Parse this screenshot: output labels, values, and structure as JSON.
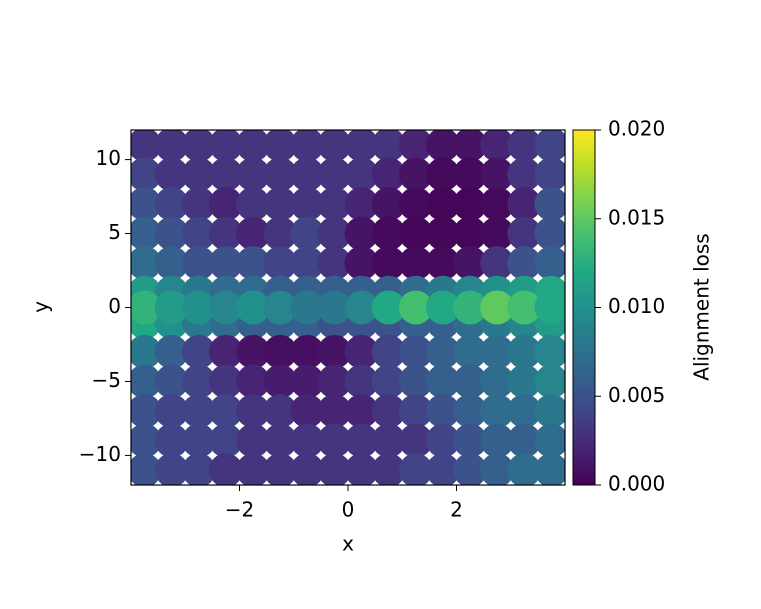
{
  "chart_data": {
    "type": "scatter",
    "xlabel": "x",
    "ylabel": "y",
    "colorbar_label": "Alignment loss",
    "colormap": "viridis",
    "xlim": [
      -4,
      4
    ],
    "ylim": [
      -12,
      12
    ],
    "xticks": [
      {
        "value": -2,
        "label": "−2"
      },
      0,
      2
    ],
    "yticks": [
      {
        "value": -10,
        "label": "−10"
      },
      {
        "value": -5,
        "label": "−5"
      },
      0,
      5,
      10
    ],
    "clim": [
      0,
      0.02
    ],
    "cticks": [
      {
        "value": 0,
        "label": "0.000"
      },
      {
        "value": 0.005,
        "label": "0.005"
      },
      {
        "value": 0.01,
        "label": "0.010"
      },
      {
        "value": 0.015,
        "label": "0.015"
      },
      {
        "value": 0.02,
        "label": "0.020"
      }
    ],
    "x": [
      -3.75,
      -3.25,
      -2.75,
      -2.25,
      -1.75,
      -1.25,
      -0.75,
      -0.25,
      0.25,
      0.75,
      1.25,
      1.75,
      2.25,
      2.75,
      3.25,
      3.75,
      -3.75,
      -3.25,
      -2.75,
      -2.25,
      -1.75,
      -1.25,
      -0.75,
      -0.25,
      0.25,
      0.75,
      1.25,
      1.75,
      2.25,
      2.75,
      3.25,
      3.75,
      -3.75,
      -3.25,
      -2.75,
      -2.25,
      -1.75,
      -1.25,
      -0.75,
      -0.25,
      0.25,
      0.75,
      1.25,
      1.75,
      2.25,
      2.75,
      3.25,
      3.75,
      -3.75,
      -3.25,
      -2.75,
      -2.25,
      -1.75,
      -1.25,
      -0.75,
      -0.25,
      0.25,
      0.75,
      1.25,
      1.75,
      2.25,
      2.75,
      3.25,
      3.75,
      -3.75,
      -3.25,
      -2.75,
      -2.25,
      -1.75,
      -1.25,
      -0.75,
      -0.25,
      0.25,
      0.75,
      1.25,
      1.75,
      2.25,
      2.75,
      3.25,
      3.75,
      -3.75,
      -3.25,
      -2.75,
      -2.25,
      -1.75,
      -1.25,
      -0.75,
      -0.25,
      0.25,
      0.75,
      1.25,
      1.75,
      2.25,
      2.75,
      3.25,
      3.75,
      -3.75,
      -3.25,
      -2.75,
      -2.25,
      -1.75,
      -1.25,
      -0.75,
      -0.25,
      0.25,
      0.75,
      1.25,
      1.75,
      2.25,
      2.75,
      3.25,
      3.75,
      -3.75,
      -3.25,
      -2.75,
      -2.25,
      -1.75,
      -1.25,
      -0.75,
      -0.25,
      0.25,
      0.75,
      1.25,
      1.75,
      2.25,
      2.75,
      3.25,
      3.75,
      -3.75,
      -3.25,
      -2.75,
      -2.25,
      -1.75,
      -1.25,
      -0.75,
      -0.25,
      0.25,
      0.75,
      1.25,
      1.75,
      2.25,
      2.75,
      3.25,
      3.75,
      -3.75,
      -3.25,
      -2.75,
      -2.25,
      -1.75,
      -1.25,
      -0.75,
      -0.25,
      0.25,
      0.75,
      1.25,
      1.75,
      2.25,
      2.75,
      3.25,
      3.75,
      -3.75,
      -3.25,
      -2.75,
      -2.25,
      -1.75,
      -1.25,
      -0.75,
      -0.25,
      0.25,
      0.75,
      1.25,
      1.75,
      2.25,
      2.75,
      3.25,
      3.75,
      -3.75,
      -3.25,
      -2.75,
      -2.25,
      -1.75,
      -1.25,
      -0.75,
      -0.25,
      0.25,
      0.75,
      1.25,
      1.75,
      2.25,
      2.75,
      3.25,
      3.75,
      -3.75,
      -3.25,
      -2.75,
      -2.25,
      -1.75,
      -1.25,
      -0.75,
      -0.25,
      0.25,
      0.75,
      1.25,
      1.75,
      2.25,
      2.75,
      3.25,
      3.75
    ],
    "y": [
      11,
      11,
      11,
      11,
      11,
      11,
      11,
      11,
      11,
      11,
      11,
      11,
      11,
      11,
      11,
      11,
      9,
      9,
      9,
      9,
      9,
      9,
      9,
      9,
      9,
      9,
      9,
      9,
      9,
      9,
      9,
      9,
      7,
      7,
      7,
      7,
      7,
      7,
      7,
      7,
      7,
      7,
      7,
      7,
      7,
      7,
      7,
      7,
      5,
      5,
      5,
      5,
      5,
      5,
      5,
      5,
      5,
      5,
      5,
      5,
      5,
      5,
      5,
      5,
      3,
      3,
      3,
      3,
      3,
      3,
      3,
      3,
      3,
      3,
      3,
      3,
      3,
      3,
      3,
      3,
      1,
      1,
      1,
      1,
      1,
      1,
      1,
      1,
      1,
      1,
      1,
      1,
      1,
      1,
      1,
      1,
      -1,
      -1,
      -1,
      -1,
      -1,
      -1,
      -1,
      -1,
      -1,
      -1,
      -1,
      -1,
      -1,
      -1,
      -1,
      -1,
      -3,
      -3,
      -3,
      -3,
      -3,
      -3,
      -3,
      -3,
      -3,
      -3,
      -3,
      -3,
      -3,
      -3,
      -3,
      -3,
      -5,
      -5,
      -5,
      -5,
      -5,
      -5,
      -5,
      -5,
      -5,
      -5,
      -5,
      -5,
      -5,
      -5,
      -5,
      -5,
      -7,
      -7,
      -7,
      -7,
      -7,
      -7,
      -7,
      -7,
      -7,
      -7,
      -7,
      -7,
      -7,
      -7,
      -7,
      -7,
      -9,
      -9,
      -9,
      -9,
      -9,
      -9,
      -9,
      -9,
      -9,
      -9,
      -9,
      -9,
      -9,
      -9,
      -9,
      -9,
      -11,
      -11,
      -11,
      -11,
      -11,
      -11,
      -11,
      -11,
      -11,
      -11,
      -11,
      -11,
      -11,
      -11,
      -11,
      -11,
      0,
      0,
      0,
      0,
      0,
      0,
      0,
      0,
      0,
      0,
      0,
      0,
      0,
      0,
      0,
      0
    ],
    "values": [
      0.003,
      0.003,
      0.003,
      0.003,
      0.003,
      0.003,
      0.003,
      0.003,
      0.003,
      0.003,
      0.002,
      0.001,
      0.001,
      0.002,
      0.003,
      0.004,
      0.004,
      0.003,
      0.003,
      0.003,
      0.003,
      0.003,
      0.003,
      0.003,
      0.003,
      0.002,
      0.001,
      0.0005,
      0.0005,
      0.001,
      0.003,
      0.004,
      0.005,
      0.004,
      0.003,
      0.002,
      0.003,
      0.003,
      0.003,
      0.003,
      0.002,
      0.001,
      0.0005,
      0.0003,
      0.0003,
      0.0005,
      0.002,
      0.005,
      0.006,
      0.005,
      0.004,
      0.003,
      0.002,
      0.003,
      0.004,
      0.003,
      0.001,
      0.0005,
      0.0003,
      0.0003,
      0.0003,
      0.0005,
      0.003,
      0.005,
      0.007,
      0.006,
      0.005,
      0.005,
      0.005,
      0.004,
      0.004,
      0.003,
      0.001,
      0.0005,
      0.0005,
      0.0005,
      0.001,
      0.003,
      0.005,
      0.006,
      0.011,
      0.009,
      0.008,
      0.007,
      0.007,
      0.006,
      0.006,
      0.006,
      0.006,
      0.006,
      0.007,
      0.008,
      0.009,
      0.01,
      0.011,
      0.012,
      0.012,
      0.01,
      0.008,
      0.007,
      0.006,
      0.006,
      0.006,
      0.005,
      0.005,
      0.005,
      0.006,
      0.006,
      0.007,
      0.008,
      0.009,
      0.011,
      0.008,
      0.006,
      0.004,
      0.002,
      0.001,
      0.0008,
      0.0008,
      0.001,
      0.002,
      0.004,
      0.005,
      0.006,
      0.007,
      0.007,
      0.008,
      0.009,
      0.006,
      0.005,
      0.004,
      0.003,
      0.002,
      0.0015,
      0.0015,
      0.002,
      0.003,
      0.004,
      0.005,
      0.006,
      0.006,
      0.007,
      0.008,
      0.009,
      0.005,
      0.004,
      0.004,
      0.004,
      0.003,
      0.003,
      0.002,
      0.002,
      0.002,
      0.003,
      0.004,
      0.005,
      0.006,
      0.007,
      0.007,
      0.008,
      0.005,
      0.004,
      0.004,
      0.004,
      0.003,
      0.003,
      0.003,
      0.003,
      0.003,
      0.003,
      0.003,
      0.004,
      0.005,
      0.006,
      0.006,
      0.007,
      0.005,
      0.004,
      0.004,
      0.003,
      0.003,
      0.003,
      0.003,
      0.003,
      0.003,
      0.003,
      0.004,
      0.004,
      0.005,
      0.006,
      0.007,
      0.007,
      0.013,
      0.011,
      0.01,
      0.009,
      0.01,
      0.009,
      0.008,
      0.008,
      0.009,
      0.012,
      0.014,
      0.012,
      0.013,
      0.015,
      0.014,
      0.012
    ]
  }
}
